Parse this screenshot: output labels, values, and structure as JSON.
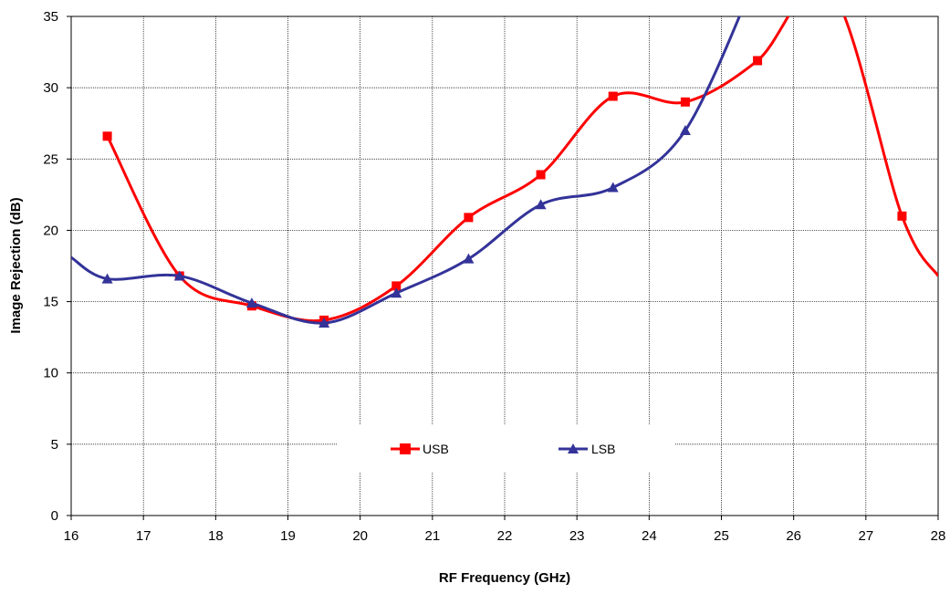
{
  "chart_data": {
    "type": "line",
    "title": "",
    "xlabel": "RF Frequency (GHz)",
    "ylabel": "Image Rejection  (dB)",
    "xlim": [
      16,
      28
    ],
    "ylim": [
      0,
      35
    ],
    "xticks": [
      16,
      17,
      18,
      19,
      20,
      21,
      22,
      23,
      24,
      25,
      26,
      27,
      28
    ],
    "yticks": [
      0,
      5,
      10,
      15,
      20,
      25,
      30,
      35
    ],
    "grid": true,
    "legend_position": "inside-lower-center",
    "series": [
      {
        "name": "USB",
        "color": "#ff0000",
        "marker": "square",
        "x": [
          16.5,
          17.5,
          18.5,
          19.5,
          20.5,
          21.5,
          22.5,
          23.5,
          24.5,
          25.5,
          26.5,
          27.5,
          28.0
        ],
        "y": [
          26.6,
          16.8,
          14.7,
          13.7,
          16.1,
          20.9,
          23.9,
          29.4,
          29.0,
          31.9,
          37.0,
          21.0,
          16.8
        ],
        "marker_points": [
          true,
          true,
          true,
          true,
          true,
          true,
          true,
          true,
          true,
          true,
          false,
          true,
          false
        ]
      },
      {
        "name": "LSB",
        "color": "#333399",
        "marker": "triangle",
        "x": [
          16.0,
          16.5,
          17.5,
          18.5,
          19.5,
          20.5,
          21.5,
          22.5,
          23.5,
          24.5,
          25.5
        ],
        "y": [
          18.1,
          16.6,
          16.8,
          14.9,
          13.5,
          15.6,
          18.0,
          21.8,
          23.0,
          27.0,
          38.0
        ],
        "marker_points": [
          false,
          true,
          true,
          true,
          true,
          true,
          true,
          true,
          true,
          true,
          false
        ]
      }
    ]
  }
}
